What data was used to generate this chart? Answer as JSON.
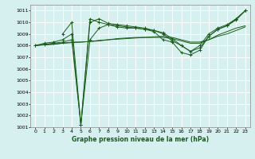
{
  "title": "Graphe pression niveau de la mer (hPa)",
  "bg_color": "#d6f0f0",
  "grid_color": "#ffffff",
  "line_color": "#1a5c1a",
  "xlim": [
    -0.5,
    23.5
  ],
  "ylim": [
    1001,
    1011.5
  ],
  "yticks": [
    1001,
    1002,
    1003,
    1004,
    1005,
    1006,
    1007,
    1008,
    1009,
    1010,
    1011
  ],
  "xticks": [
    0,
    1,
    2,
    3,
    4,
    5,
    6,
    7,
    8,
    9,
    10,
    11,
    12,
    13,
    14,
    15,
    16,
    17,
    18,
    19,
    20,
    21,
    22,
    23
  ],
  "lines": [
    {
      "x": [
        0,
        1,
        2,
        3,
        4,
        5,
        6,
        7,
        8,
        9,
        10,
        11,
        12,
        13,
        14,
        15,
        16,
        17,
        18,
        19,
        20,
        21,
        22,
        23
      ],
      "y": [
        1008.0,
        1008.1,
        1008.2,
        1008.3,
        1008.5,
        1001.2,
        1008.5,
        1009.5,
        1009.8,
        1009.7,
        1009.6,
        1009.5,
        1009.4,
        1009.2,
        1008.5,
        1008.3,
        1007.4,
        1007.2,
        1007.6,
        1008.8,
        1009.4,
        1009.7,
        1010.3,
        1011.0
      ],
      "marker": true
    },
    {
      "x": [
        0,
        1,
        2,
        3,
        4,
        5,
        6,
        7,
        8,
        9,
        10,
        11,
        12,
        13,
        14,
        15,
        16,
        17,
        18,
        19,
        20,
        21,
        22,
        23
      ],
      "y": [
        1008.0,
        1008.2,
        1008.3,
        1008.5,
        1009.0,
        1001.2,
        1010.0,
        1010.3,
        1009.9,
        1009.8,
        1009.7,
        1009.6,
        1009.5,
        1009.3,
        1009.0,
        1008.4,
        1008.0,
        1007.5,
        1008.0,
        1009.0,
        1009.5,
        1009.8,
        1010.3,
        1011.0
      ],
      "marker": true
    },
    {
      "x": [
        3,
        4,
        5,
        6,
        7,
        8,
        9,
        10,
        11,
        12,
        13,
        14,
        15,
        16,
        17,
        18,
        19,
        20,
        21,
        22,
        23
      ],
      "y": [
        1009.0,
        1010.0,
        1001.2,
        1010.3,
        1010.0,
        1009.8,
        1009.6,
        1009.5,
        1009.5,
        1009.4,
        1009.3,
        1009.1,
        1008.6,
        1008.0,
        1007.5,
        1007.8,
        1008.8,
        1009.4,
        1009.7,
        1010.2,
        1011.0
      ],
      "marker": true
    },
    {
      "x": [
        0,
        1,
        2,
        3,
        4,
        5,
        6,
        7,
        8,
        9,
        10,
        11,
        12,
        13,
        14,
        15,
        16,
        17,
        18,
        19,
        20,
        21,
        22,
        23
      ],
      "y": [
        1008.0,
        1008.05,
        1008.1,
        1008.2,
        1008.3,
        1008.3,
        1008.35,
        1008.4,
        1008.5,
        1008.55,
        1008.6,
        1008.65,
        1008.7,
        1008.75,
        1008.8,
        1008.7,
        1008.5,
        1008.3,
        1008.3,
        1008.5,
        1008.8,
        1009.0,
        1009.3,
        1009.6
      ],
      "marker": false
    },
    {
      "x": [
        0,
        1,
        2,
        3,
        4,
        5,
        6,
        7,
        8,
        9,
        10,
        11,
        12,
        13,
        14,
        15,
        16,
        17,
        18,
        19,
        20,
        21,
        22,
        23
      ],
      "y": [
        1008.0,
        1008.1,
        1008.15,
        1008.2,
        1008.25,
        1008.3,
        1008.35,
        1008.45,
        1008.5,
        1008.6,
        1008.65,
        1008.7,
        1008.7,
        1008.7,
        1008.7,
        1008.6,
        1008.4,
        1008.2,
        1008.2,
        1008.5,
        1008.9,
        1009.2,
        1009.5,
        1009.7
      ],
      "marker": false
    }
  ]
}
